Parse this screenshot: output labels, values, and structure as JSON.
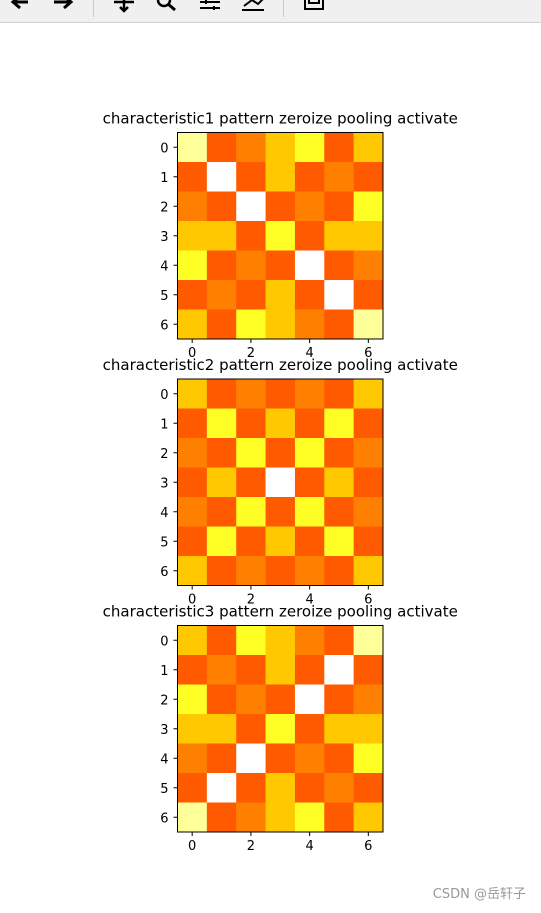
{
  "chart_data": [
    {
      "type": "heatmap",
      "title": "characteristic1 pattern zeroize pooling activate",
      "values": [
        [
          1,
          5,
          4,
          3,
          2,
          5,
          3
        ],
        [
          5,
          0,
          5,
          3,
          5,
          4,
          5
        ],
        [
          4,
          5,
          0,
          5,
          4,
          5,
          2
        ],
        [
          3,
          3,
          5,
          2,
          5,
          3,
          3
        ],
        [
          2,
          5,
          4,
          5,
          0,
          5,
          4
        ],
        [
          5,
          4,
          5,
          3,
          5,
          0,
          5
        ],
        [
          3,
          5,
          2,
          3,
          4,
          5,
          1
        ]
      ],
      "color_scale": [
        "#ffffff",
        "#ffff99",
        "#ffff26",
        "#ffc800",
        "#ff8000",
        "#ff5a00"
      ],
      "xlim": [
        -0.5,
        6.5
      ],
      "ylim": [
        6.5,
        -0.5
      ],
      "xticks": [
        0,
        2,
        4,
        6
      ],
      "yticks": [
        0,
        1,
        2,
        3,
        4,
        5,
        6
      ]
    },
    {
      "type": "heatmap",
      "title": "characteristic2 pattern zeroize pooling activate",
      "values": [
        [
          3,
          5,
          4,
          5,
          4,
          5,
          3
        ],
        [
          5,
          2,
          5,
          3,
          5,
          2,
          5
        ],
        [
          4,
          5,
          2,
          5,
          2,
          5,
          4
        ],
        [
          5,
          3,
          5,
          0,
          5,
          3,
          5
        ],
        [
          4,
          5,
          2,
          5,
          2,
          5,
          4
        ],
        [
          5,
          2,
          5,
          3,
          5,
          2,
          5
        ],
        [
          3,
          5,
          4,
          5,
          4,
          5,
          3
        ]
      ],
      "color_scale": [
        "#ffffff",
        "#ffff99",
        "#ffff26",
        "#ffc800",
        "#ff8000",
        "#ff5a00"
      ],
      "xlim": [
        -0.5,
        6.5
      ],
      "ylim": [
        6.5,
        -0.5
      ],
      "xticks": [
        0,
        2,
        4,
        6
      ],
      "yticks": [
        0,
        1,
        2,
        3,
        4,
        5,
        6
      ]
    },
    {
      "type": "heatmap",
      "title": "characteristic3 pattern zeroize pooling activate",
      "values": [
        [
          3,
          5,
          2,
          3,
          4,
          5,
          1
        ],
        [
          5,
          4,
          5,
          3,
          5,
          0,
          5
        ],
        [
          2,
          5,
          4,
          5,
          0,
          5,
          4
        ],
        [
          3,
          3,
          5,
          2,
          5,
          3,
          3
        ],
        [
          4,
          5,
          0,
          5,
          4,
          5,
          2
        ],
        [
          5,
          0,
          5,
          3,
          5,
          4,
          5
        ],
        [
          1,
          5,
          4,
          3,
          2,
          5,
          3
        ]
      ],
      "color_scale": [
        "#ffffff",
        "#ffff99",
        "#ffff26",
        "#ffc800",
        "#ff8000",
        "#ff5a00"
      ],
      "xlim": [
        -0.5,
        6.5
      ],
      "ylim": [
        6.5,
        -0.5
      ],
      "xticks": [
        0,
        2,
        4,
        6
      ],
      "yticks": [
        0,
        1,
        2,
        3,
        4,
        5,
        6
      ]
    }
  ],
  "watermark": "CSDN @岳轩子"
}
